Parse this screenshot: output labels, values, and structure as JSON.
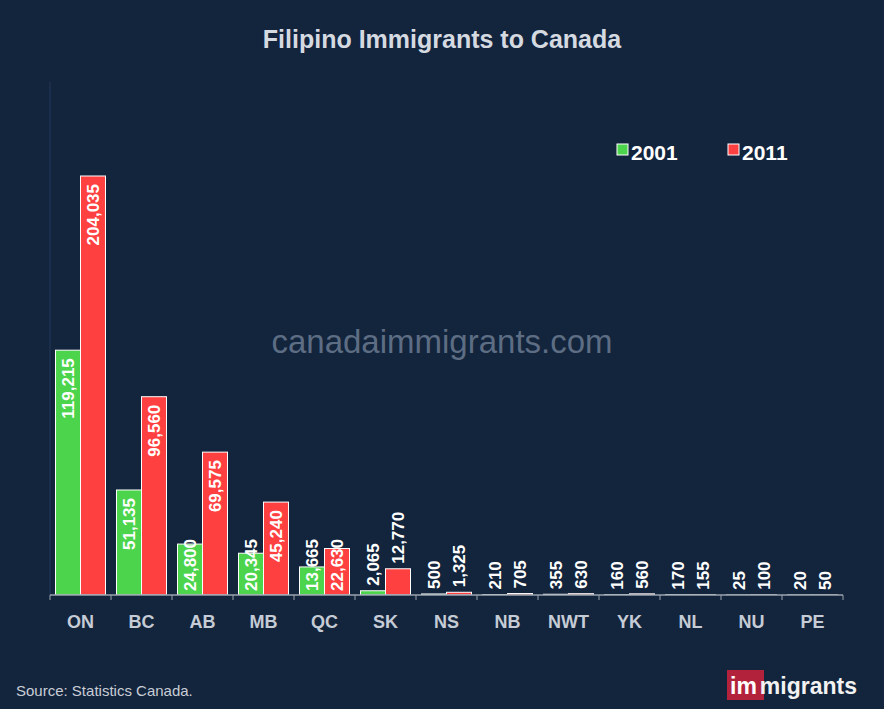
{
  "chart_data": {
    "type": "bar",
    "title": "Filipino Immigrants to Canada",
    "annotations": [
      "canadaimmigrants.com",
      "Source: Statistics Canada.",
      "immigrants"
    ],
    "categories": [
      "ON",
      "BC",
      "AB",
      "MB",
      "QC",
      "SK",
      "NS",
      "NB",
      "NWT",
      "YK",
      "NL",
      "NU",
      "PE"
    ],
    "series": [
      {
        "name": "2001",
        "color": "#4cd44c",
        "values": [
          119215,
          51135,
          24800,
          20345,
          13665,
          2065,
          500,
          210,
          355,
          160,
          170,
          25,
          20
        ],
        "value_labels": [
          "119,215",
          "51,135",
          "24,800",
          "20,345",
          "13,665",
          "2,065",
          "500",
          "210",
          "355",
          "160",
          "170",
          "25",
          "20"
        ]
      },
      {
        "name": "2011",
        "color": "#ff4040",
        "values": [
          204035,
          96560,
          69575,
          45240,
          22630,
          12770,
          1325,
          705,
          630,
          560,
          155,
          100,
          50
        ],
        "value_labels": [
          "204,035",
          "96,560",
          "69,575",
          "45,240",
          "22,630",
          "12,770",
          "1,325",
          "705",
          "630",
          "560",
          "155",
          "100",
          "50"
        ]
      }
    ],
    "ylim": [
      0,
      250000
    ],
    "yticks": [],
    "tick_labels": "x",
    "grid": false,
    "legend": "upper right",
    "data_labels": true
  }
}
